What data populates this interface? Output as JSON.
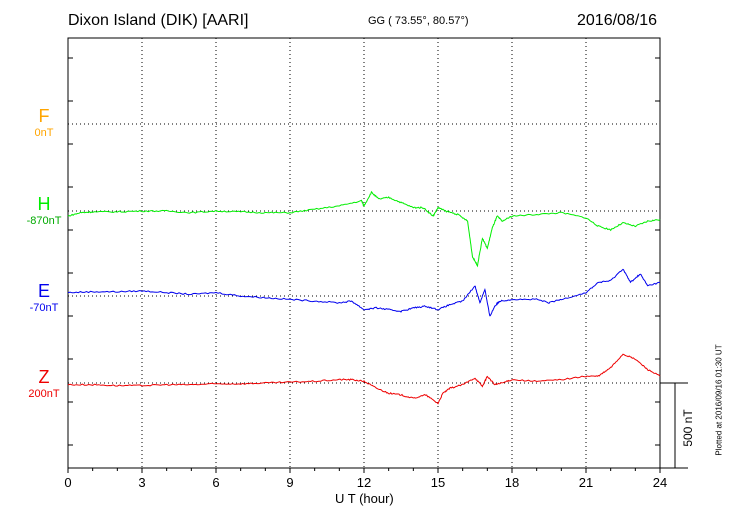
{
  "header": {
    "title": "Dixon Island (DIK)  [AARI]",
    "coords": "GG ( 73.55°,  80.57°)",
    "date": "2016/08/16"
  },
  "footer": {
    "plotted": "Plotted at 2016/09/16 01:30 UT"
  },
  "chart_data": {
    "type": "line",
    "xlabel": "U T (hour)",
    "xlim": [
      0,
      24
    ],
    "x_ticks": [
      "0",
      "3",
      "6",
      "9",
      "12",
      "15",
      "18",
      "21",
      "24"
    ],
    "grid": true,
    "scale_bar": {
      "label": "500 nT",
      "value_nT": 500
    },
    "channels": [
      {
        "name": "F",
        "baseline": "0nT",
        "color": "#ffa500",
        "values": []
      },
      {
        "name": "H",
        "baseline": "-870nT",
        "color": "#00ee00",
        "points": [
          [
            0,
            -30
          ],
          [
            0.5,
            -10
          ],
          [
            1,
            -5
          ],
          [
            2,
            -5
          ],
          [
            3,
            0
          ],
          [
            4,
            0
          ],
          [
            5,
            -10
          ],
          [
            6,
            0
          ],
          [
            7,
            -5
          ],
          [
            8,
            -10
          ],
          [
            9,
            -10
          ],
          [
            10,
            10
          ],
          [
            11,
            30
          ],
          [
            11.9,
            60
          ],
          [
            12,
            30
          ],
          [
            12.3,
            110
          ],
          [
            12.6,
            70
          ],
          [
            13,
            80
          ],
          [
            13.5,
            50
          ],
          [
            14,
            20
          ],
          [
            14.4,
            20
          ],
          [
            14.8,
            -30
          ],
          [
            15,
            20
          ],
          [
            15.3,
            0
          ],
          [
            15.8,
            -20
          ],
          [
            16.2,
            -60
          ],
          [
            16.4,
            -270
          ],
          [
            16.6,
            -320
          ],
          [
            16.8,
            -160
          ],
          [
            17,
            -220
          ],
          [
            17.2,
            -100
          ],
          [
            17.4,
            -30
          ],
          [
            17.6,
            -60
          ],
          [
            18,
            -30
          ],
          [
            19,
            -20
          ],
          [
            20,
            -10
          ],
          [
            21,
            -40
          ],
          [
            21.5,
            -90
          ],
          [
            22,
            -110
          ],
          [
            22.5,
            -70
          ],
          [
            23,
            -90
          ],
          [
            23.5,
            -60
          ],
          [
            24,
            -50
          ]
        ]
      },
      {
        "name": "E",
        "baseline": "-70nT",
        "color": "#0000ee",
        "points": [
          [
            0,
            20
          ],
          [
            1,
            25
          ],
          [
            2,
            25
          ],
          [
            3,
            30
          ],
          [
            4,
            20
          ],
          [
            5,
            10
          ],
          [
            6,
            20
          ],
          [
            7,
            0
          ],
          [
            8,
            -10
          ],
          [
            9,
            -20
          ],
          [
            10,
            -30
          ],
          [
            11,
            -40
          ],
          [
            11.5,
            -30
          ],
          [
            12,
            -80
          ],
          [
            12.5,
            -70
          ],
          [
            13,
            -80
          ],
          [
            13.5,
            -90
          ],
          [
            14,
            -70
          ],
          [
            14.5,
            -60
          ],
          [
            15,
            -80
          ],
          [
            15.5,
            -50
          ],
          [
            16,
            -30
          ],
          [
            16.5,
            60
          ],
          [
            16.7,
            -40
          ],
          [
            16.9,
            40
          ],
          [
            17.1,
            -120
          ],
          [
            17.3,
            -60
          ],
          [
            17.5,
            -30
          ],
          [
            18,
            -20
          ],
          [
            19,
            -20
          ],
          [
            19.5,
            -40
          ],
          [
            20,
            -20
          ],
          [
            21,
            20
          ],
          [
            21.5,
            80
          ],
          [
            22,
            90
          ],
          [
            22.5,
            160
          ],
          [
            22.8,
            80
          ],
          [
            23.2,
            130
          ],
          [
            23.5,
            60
          ],
          [
            24,
            80
          ]
        ]
      },
      {
        "name": "Z",
        "baseline": "200nT",
        "color": "#ee0000",
        "points": [
          [
            0,
            -10
          ],
          [
            1,
            -10
          ],
          [
            2,
            -15
          ],
          [
            3,
            -15
          ],
          [
            4,
            -10
          ],
          [
            5,
            -10
          ],
          [
            6,
            -5
          ],
          [
            7,
            -5
          ],
          [
            8,
            0
          ],
          [
            9,
            5
          ],
          [
            10,
            10
          ],
          [
            11,
            20
          ],
          [
            11.5,
            20
          ],
          [
            12,
            10
          ],
          [
            12.5,
            -30
          ],
          [
            13,
            -60
          ],
          [
            13.5,
            -70
          ],
          [
            14,
            -90
          ],
          [
            14.5,
            -70
          ],
          [
            15,
            -120
          ],
          [
            15.2,
            -60
          ],
          [
            15.5,
            -30
          ],
          [
            16,
            -10
          ],
          [
            16.5,
            30
          ],
          [
            16.8,
            -20
          ],
          [
            17,
            40
          ],
          [
            17.3,
            -10
          ],
          [
            17.6,
            0
          ],
          [
            18,
            20
          ],
          [
            19,
            10
          ],
          [
            20,
            20
          ],
          [
            21,
            40
          ],
          [
            21.5,
            40
          ],
          [
            22,
            90
          ],
          [
            22.5,
            170
          ],
          [
            23,
            140
          ],
          [
            23.5,
            80
          ],
          [
            24,
            40
          ]
        ]
      }
    ]
  }
}
